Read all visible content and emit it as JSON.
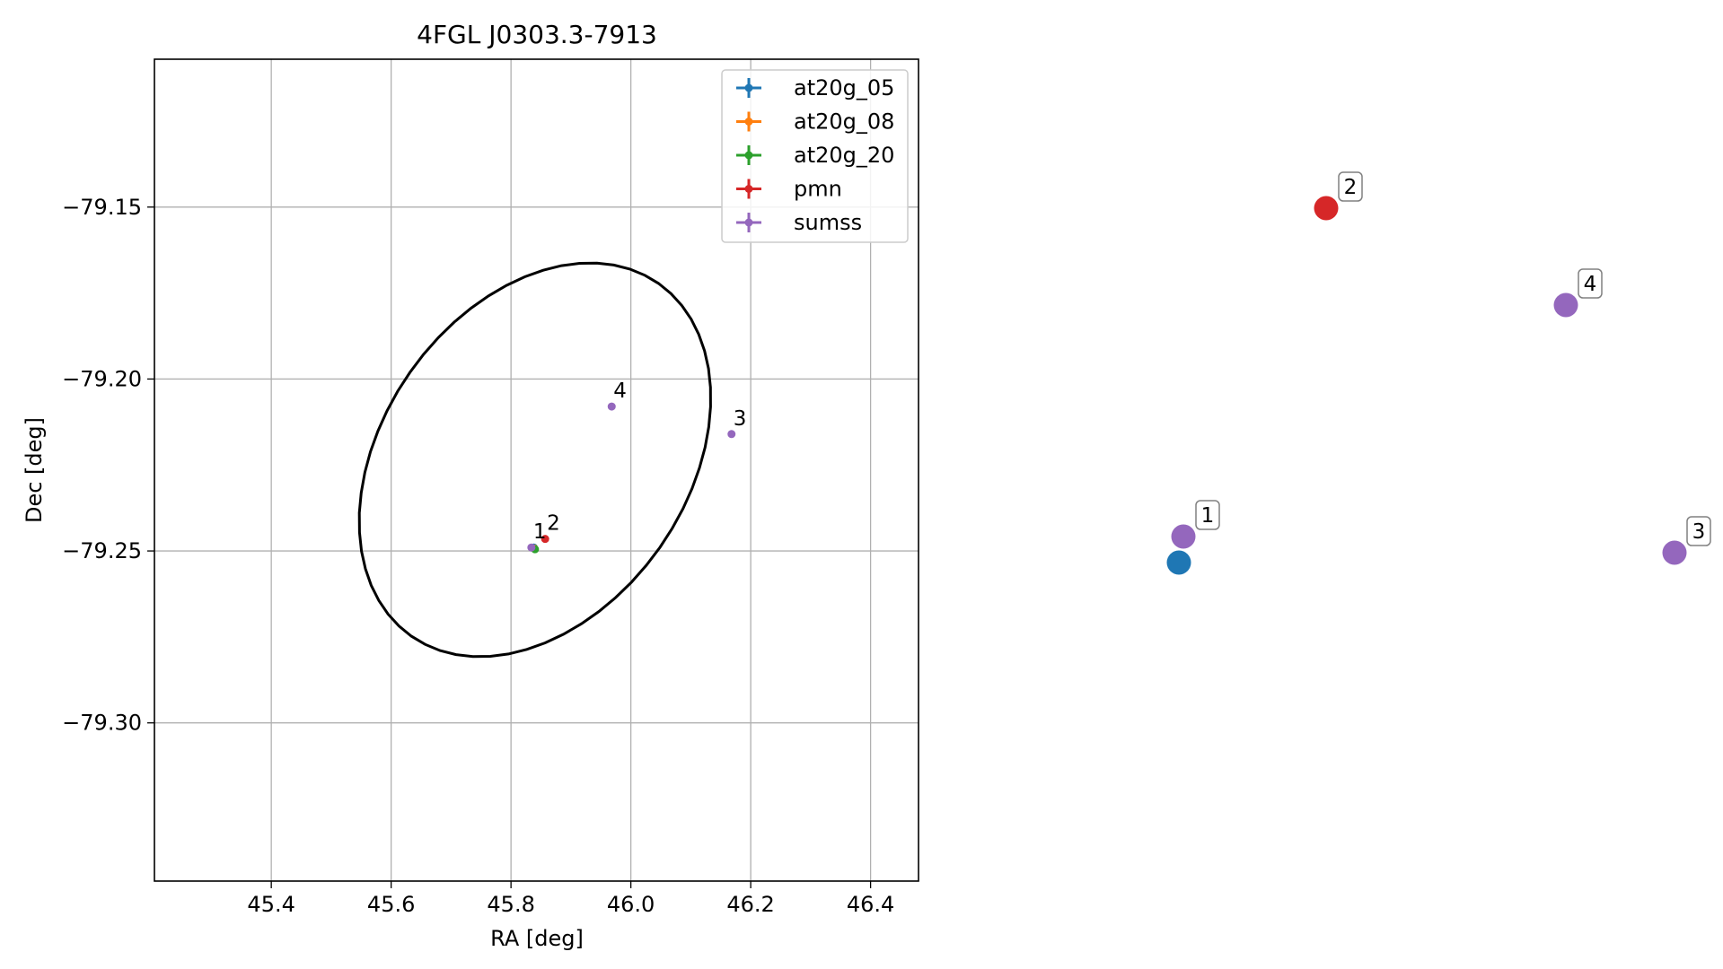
{
  "chart_data": [
    {
      "type": "scatter",
      "title": "4FGL J0303.3-7913",
      "xlabel": "RA [deg]",
      "ylabel": "Dec [deg]",
      "xlim": [
        45.205,
        46.48
      ],
      "ylim": [
        -79.346,
        -79.107
      ],
      "xticks": [
        {
          "value": 45.4,
          "label": "45.4"
        },
        {
          "value": 45.6,
          "label": "45.6"
        },
        {
          "value": 45.8,
          "label": "45.8"
        },
        {
          "value": 46.0,
          "label": "46.0"
        },
        {
          "value": 46.2,
          "label": "46.2"
        },
        {
          "value": 46.4,
          "label": "46.4"
        }
      ],
      "yticks": [
        {
          "value": -79.15,
          "label": "−79.15"
        },
        {
          "value": -79.2,
          "label": "−79.20"
        },
        {
          "value": -79.25,
          "label": "−79.25"
        },
        {
          "value": -79.3,
          "label": "−79.30"
        }
      ],
      "grid": true,
      "legend_position": "top-right",
      "series": [
        {
          "name": "at20g_05",
          "color": "#1f77b4",
          "points": [
            {
              "x": 45.838,
              "y": -79.249
            }
          ]
        },
        {
          "name": "at20g_08",
          "color": "#ff7f0e",
          "points": [
            {
              "x": 45.839,
              "y": -79.2493
            }
          ]
        },
        {
          "name": "at20g_20",
          "color": "#2ca02c",
          "points": [
            {
              "x": 45.84,
              "y": -79.2495
            }
          ]
        },
        {
          "name": "pmn",
          "color": "#d62728",
          "points": [
            {
              "x": 45.857,
              "y": -79.2465
            }
          ]
        },
        {
          "name": "sumss",
          "color": "#9467bd",
          "points": [
            {
              "x": 45.834,
              "y": -79.249
            },
            {
              "x": 46.168,
              "y": -79.216
            },
            {
              "x": 45.968,
              "y": -79.208
            }
          ]
        }
      ],
      "annotations": [
        {
          "text": "1",
          "x": 45.834,
          "y": -79.249
        },
        {
          "text": "2",
          "x": 45.857,
          "y": -79.2465
        },
        {
          "text": "3",
          "x": 46.168,
          "y": -79.216
        },
        {
          "text": "4",
          "x": 45.968,
          "y": -79.208
        }
      ],
      "ellipse": {
        "center_ra": 45.84,
        "center_dec": -79.2235,
        "color": "#000000"
      }
    },
    {
      "type": "scatter",
      "axes": "off",
      "points": [
        {
          "label": "1",
          "x": 45.834,
          "y": -79.249,
          "color": "#9467bd"
        },
        {
          "label": "",
          "x": 45.838,
          "y": -79.249,
          "color": "#1f77b4"
        },
        {
          "label": "2",
          "x": 45.857,
          "y": -79.2465,
          "color": "#d62728"
        },
        {
          "label": "3",
          "x": 46.168,
          "y": -79.216,
          "color": "#9467bd"
        },
        {
          "label": "4",
          "x": 45.968,
          "y": -79.208,
          "color": "#9467bd"
        }
      ]
    }
  ]
}
